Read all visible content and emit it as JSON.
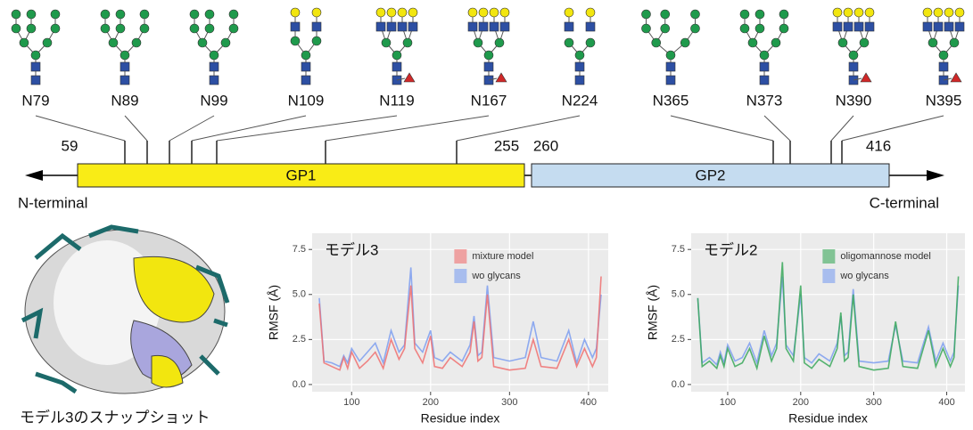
{
  "diagram": {
    "sites": [
      "N79",
      "N89",
      "N99",
      "N109",
      "N119",
      "N167",
      "N224",
      "N365",
      "N373",
      "N390",
      "N395"
    ],
    "domains": [
      {
        "label": "GP1",
        "start": 59,
        "end": 255
      },
      {
        "label": "GP2",
        "start": 260,
        "end": 416
      }
    ],
    "n_terminal": "N-terminal",
    "c_terminal": "C-terminal"
  },
  "snapshot": {
    "caption": "モデル3のスナップショット"
  },
  "chart_data": [
    {
      "type": "line",
      "title": "モデル3",
      "x_label": "Residue index",
      "y_label": "RMSF (Å)",
      "x": [
        59,
        65,
        75,
        85,
        90,
        95,
        100,
        110,
        120,
        130,
        140,
        150,
        160,
        167,
        175,
        180,
        190,
        200,
        205,
        215,
        225,
        240,
        250,
        255,
        260,
        265,
        272,
        280,
        300,
        320,
        330,
        340,
        360,
        375,
        385,
        395,
        405,
        410,
        416
      ],
      "series": [
        {
          "name": "mixture model",
          "color": "#f07070",
          "values": [
            4.5,
            1.2,
            1.0,
            0.8,
            1.5,
            0.9,
            1.8,
            0.9,
            1.3,
            1.8,
            0.9,
            2.5,
            1.4,
            2.0,
            5.5,
            2.0,
            1.2,
            2.7,
            1.0,
            0.9,
            1.5,
            1.0,
            1.8,
            3.5,
            1.3,
            1.5,
            5.0,
            1.0,
            0.8,
            0.9,
            2.5,
            1.0,
            0.9,
            2.5,
            1.0,
            2.0,
            1.0,
            1.5,
            6.0
          ]
        },
        {
          "name": "wo glycans",
          "color": "#7c9ef0",
          "values": [
            4.8,
            1.3,
            1.2,
            1.0,
            1.6,
            1.2,
            2.0,
            1.3,
            1.8,
            2.3,
            1.2,
            3.0,
            1.8,
            2.2,
            6.5,
            2.3,
            1.8,
            3.0,
            1.5,
            1.3,
            1.8,
            1.3,
            2.2,
            3.8,
            1.6,
            1.8,
            5.5,
            1.5,
            1.3,
            1.5,
            3.5,
            1.5,
            1.3,
            3.0,
            1.2,
            2.5,
            1.5,
            2.0,
            5.0
          ]
        }
      ],
      "xlim": [
        50,
        425
      ],
      "ylim": [
        -0.4,
        8.4
      ],
      "xticks": [
        100,
        200,
        300,
        400
      ],
      "yticks": [
        {
          "value": 0,
          "label": "0.0"
        },
        2.5,
        {
          "value": 5,
          "label": "5.0"
        },
        7.5
      ],
      "grid": true
    },
    {
      "type": "line",
      "title": "モデル2",
      "x_label": "Residue index",
      "y_label": "RMSF (Å)",
      "x": [
        59,
        65,
        75,
        85,
        90,
        95,
        100,
        110,
        120,
        130,
        140,
        150,
        160,
        167,
        175,
        180,
        190,
        200,
        205,
        215,
        225,
        240,
        250,
        255,
        260,
        265,
        272,
        280,
        300,
        320,
        330,
        340,
        360,
        375,
        385,
        395,
        405,
        410,
        416
      ],
      "series": [
        {
          "name": "oligomannose model",
          "color": "#3aa85a",
          "values": [
            4.8,
            1.0,
            1.3,
            0.9,
            1.6,
            1.0,
            2.0,
            1.0,
            1.2,
            2.0,
            0.9,
            2.7,
            1.3,
            2.0,
            6.8,
            2.0,
            1.3,
            5.5,
            1.2,
            0.9,
            1.4,
            1.0,
            2.0,
            4.0,
            1.3,
            1.5,
            5.0,
            1.0,
            0.8,
            0.9,
            3.5,
            1.0,
            0.9,
            3.0,
            1.0,
            2.0,
            1.0,
            1.5,
            6.0
          ]
        },
        {
          "name": "wo glycans",
          "color": "#7c9ef0",
          "values": [
            4.8,
            1.2,
            1.5,
            1.1,
            1.8,
            1.2,
            2.2,
            1.3,
            1.5,
            2.3,
            1.2,
            3.0,
            1.6,
            2.3,
            6.0,
            2.2,
            1.6,
            5.0,
            1.5,
            1.2,
            1.7,
            1.3,
            2.3,
            3.8,
            1.6,
            1.8,
            5.3,
            1.3,
            1.2,
            1.3,
            3.3,
            1.3,
            1.2,
            3.2,
            1.3,
            2.3,
            1.3,
            1.8,
            5.5
          ]
        }
      ],
      "xlim": [
        50,
        425
      ],
      "ylim": [
        -0.4,
        8.4
      ],
      "xticks": [
        100,
        200,
        300,
        400
      ],
      "yticks": [
        {
          "value": 0,
          "label": "0.0"
        },
        2.5,
        {
          "value": 5,
          "label": "5.0"
        },
        7.5
      ],
      "grid": true
    }
  ]
}
